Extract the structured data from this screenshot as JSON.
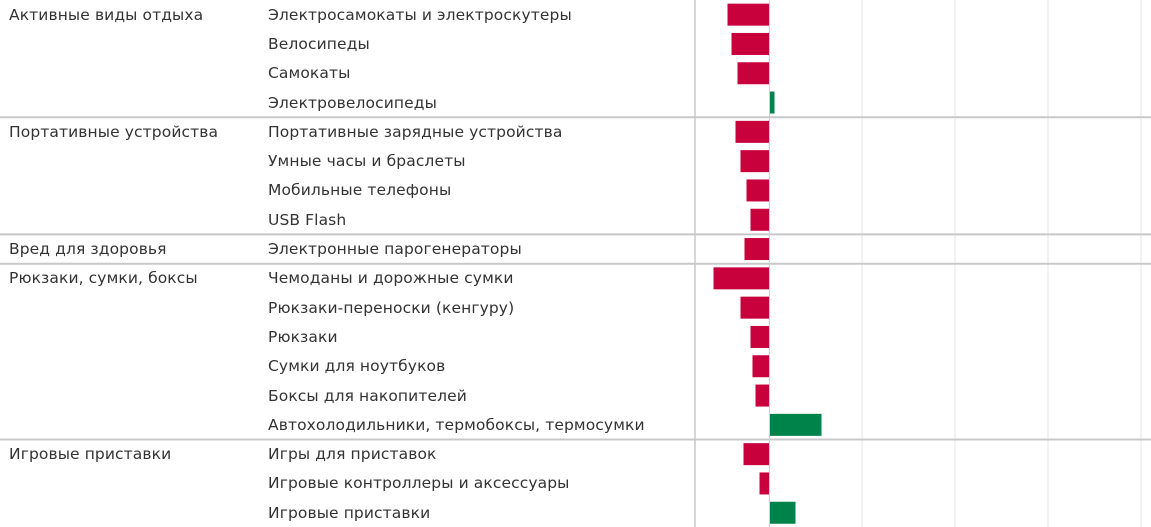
{
  "colors": {
    "negative": "#c8003c",
    "positive": "#00834a",
    "grid": "#e6e6e6",
    "separator": "#c8c8c8",
    "axis": "#c8c8c8",
    "text": "#333333"
  },
  "chart_data": {
    "type": "bar",
    "orientation": "horizontal",
    "grid": true,
    "zero_line": true,
    "groups": [
      {
        "name": "Активные виды отдыха",
        "rows": [
          {
            "label": "Электросамокаты и электроскутеры",
            "value": -42
          },
          {
            "label": "Велосипеды",
            "value": -38
          },
          {
            "label": "Самокаты",
            "value": -32
          },
          {
            "label": "Электровелосипеды",
            "value": 5
          }
        ]
      },
      {
        "name": "Портативные устройства",
        "rows": [
          {
            "label": "Портативные зарядные устройства",
            "value": -34
          },
          {
            "label": "Умные часы и браслеты",
            "value": -29
          },
          {
            "label": "Мобильные телефоны",
            "value": -23
          },
          {
            "label": "USB Flash",
            "value": -19
          }
        ]
      },
      {
        "name": "Вред для здоровья",
        "rows": [
          {
            "label": "Электронные парогенераторы",
            "value": -25
          }
        ]
      },
      {
        "name": "Рюкзаки, сумки, боксы",
        "rows": [
          {
            "label": "Чемоданы и дорожные сумки",
            "value": -56
          },
          {
            "label": "Рюкзаки-переноски (кенгуру)",
            "value": -29
          },
          {
            "label": "Рюкзаки",
            "value": -19
          },
          {
            "label": "Сумки для ноутбуков",
            "value": -17
          },
          {
            "label": "Боксы для накопителей",
            "value": -14
          },
          {
            "label": "Автохолодильники, термобоксы, термосумки",
            "value": 52
          }
        ]
      },
      {
        "name": "Игровые приставки",
        "rows": [
          {
            "label": "Игры для приставок",
            "value": -26
          },
          {
            "label": "Игровые контроллеры и аксессуары",
            "value": -10
          },
          {
            "label": "Игровые приставки",
            "value": 26
          }
        ]
      }
    ]
  }
}
